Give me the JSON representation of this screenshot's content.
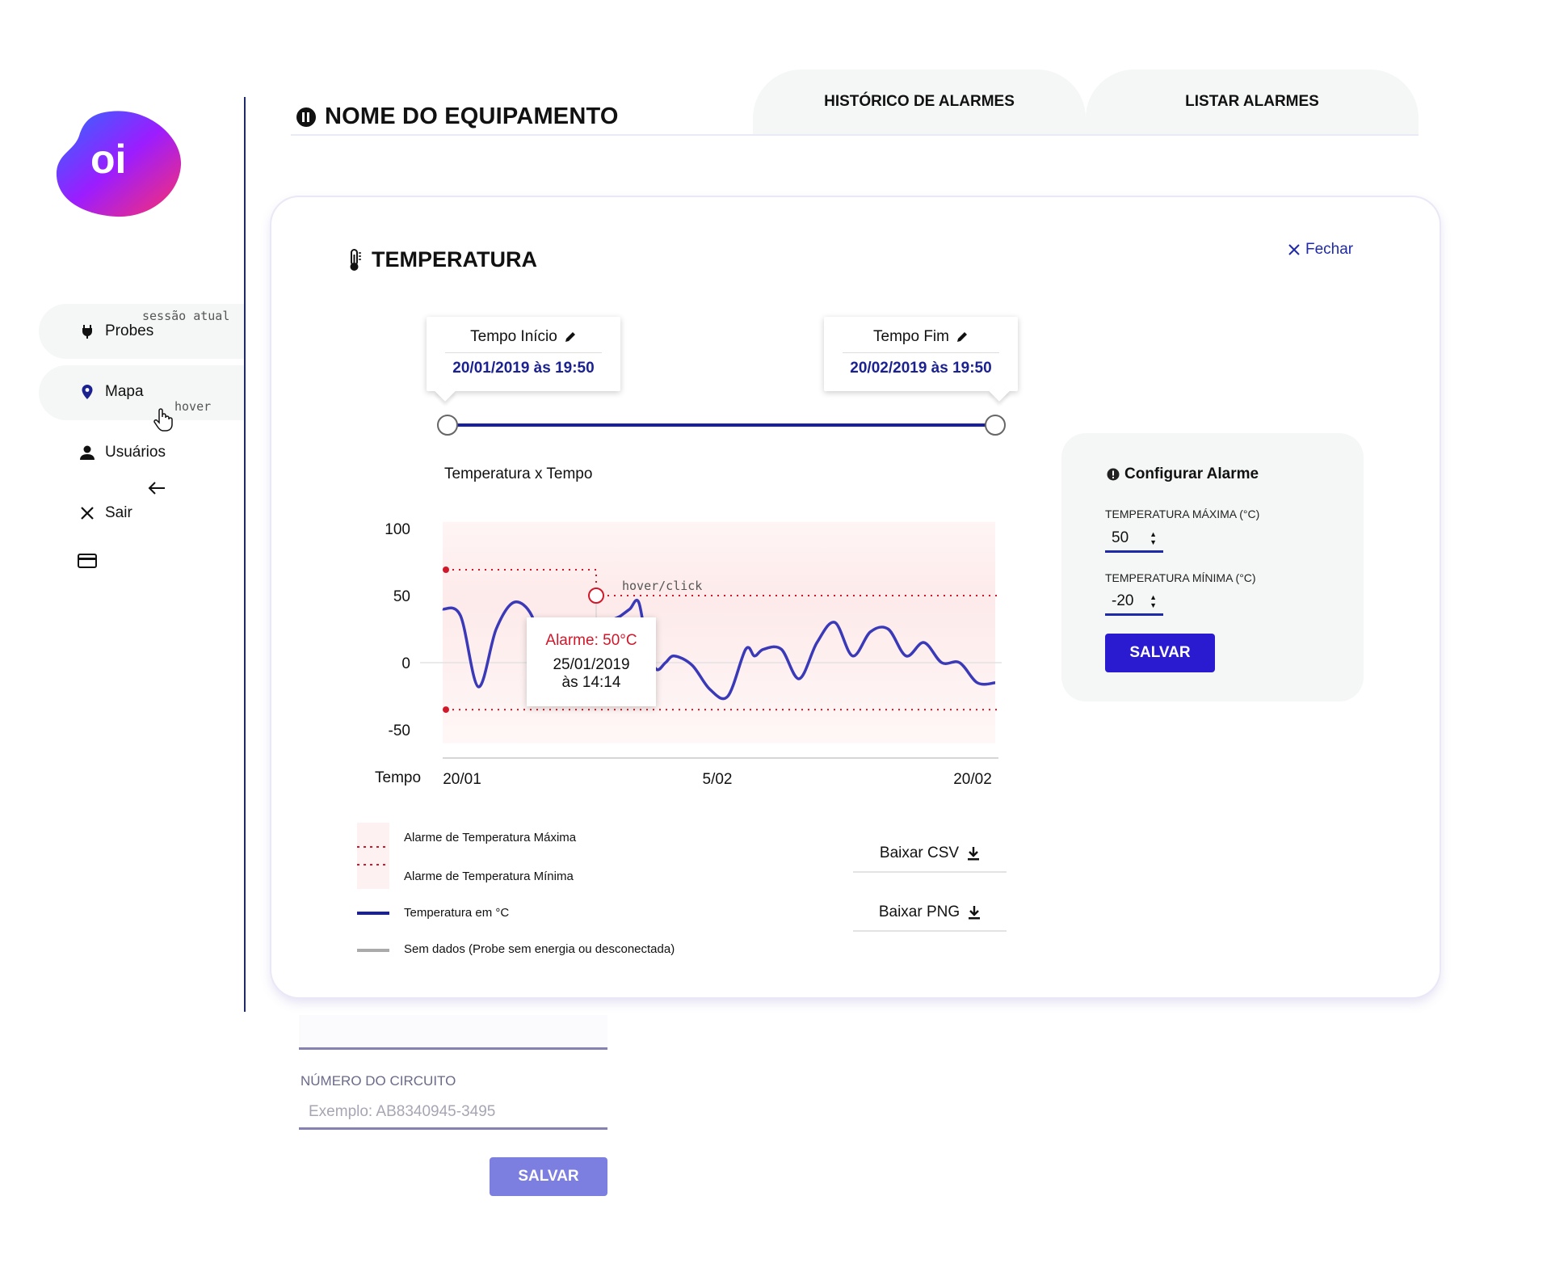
{
  "logo": {
    "text": "oi"
  },
  "sidebar": {
    "items": [
      {
        "label": "Probes",
        "icon": "plug-icon"
      },
      {
        "label": "Mapa",
        "icon": "map-pin-icon"
      },
      {
        "label": "Usuários",
        "icon": "user-icon"
      },
      {
        "label": "Sair",
        "icon": "close-icon"
      }
    ],
    "notes": {
      "session": "sessão atual",
      "hover": "hover"
    }
  },
  "header": {
    "title": "NOME DO EQUIPAMENTO",
    "tabs": [
      {
        "label": "HISTÓRICO DE ALARMES"
      },
      {
        "label": "LISTAR ALARMES"
      }
    ]
  },
  "modal": {
    "title": "TEMPERATURA",
    "close_label": "Fechar",
    "time_start": {
      "label": "Tempo Início",
      "value": "20/01/2019 às 19:50"
    },
    "time_end": {
      "label": "Tempo Fim",
      "value": "20/02/2019 às 19:50"
    },
    "hover_note": "hover/click",
    "tooltip": {
      "alarm": "Alarme: 50°C",
      "date": "25/01/2019",
      "time": "às 14:14"
    },
    "legend": [
      {
        "label": "Alarme de Temperatura Máxima"
      },
      {
        "label": "Alarme de Temperatura Mínima"
      },
      {
        "label": "Temperatura em °C"
      },
      {
        "label": "Sem dados (Probe sem energia ou desconectada)"
      }
    ],
    "downloads": {
      "csv": "Baixar CSV",
      "png": "Baixar PNG"
    },
    "colors": {
      "line": "#3a3ab8",
      "alarm": "#d0182a",
      "accent": "#1e2aa8"
    }
  },
  "chart_data": {
    "type": "line",
    "title": "Temperatura x Tempo",
    "xlabel": "Tempo",
    "ylabel": "",
    "ylim": [
      -70,
      115
    ],
    "yticks": [
      100,
      50,
      0,
      -50
    ],
    "xticks": [
      "20/01",
      "5/02",
      "20/02"
    ],
    "x_day_range": [
      0,
      31
    ],
    "max_alarm": 50,
    "min_alarm": -35,
    "series": [
      {
        "values": [
          [
            0,
            40
          ],
          [
            1,
            35
          ],
          [
            2,
            -18
          ],
          [
            3,
            25
          ],
          [
            4,
            45
          ],
          [
            5,
            35
          ],
          [
            5.5,
            5
          ],
          [
            6.5,
            -8
          ],
          [
            7.5,
            5
          ],
          [
            8.5,
            -10
          ],
          [
            9,
            25
          ],
          [
            10,
            35
          ],
          [
            10.5,
            40
          ],
          [
            11,
            45
          ],
          [
            11.5,
            10
          ],
          [
            12,
            -5
          ],
          [
            12.5,
            0
          ],
          [
            13,
            5
          ],
          [
            14,
            -2
          ],
          [
            15,
            -20
          ],
          [
            16,
            -25
          ],
          [
            17,
            10
          ],
          [
            17.5,
            5
          ],
          [
            18,
            10
          ],
          [
            19,
            10
          ],
          [
            20,
            -12
          ],
          [
            21,
            15
          ],
          [
            22,
            30
          ],
          [
            23,
            5
          ],
          [
            24,
            23
          ],
          [
            25,
            25
          ],
          [
            26,
            5
          ],
          [
            27,
            15
          ],
          [
            28,
            0
          ],
          [
            29,
            0
          ],
          [
            30,
            -15
          ],
          [
            31,
            -15
          ]
        ]
      }
    ]
  },
  "cfg": {
    "title": "Configurar Alarme",
    "max_label": "TEMPERATURA MÁXIMA (°C)",
    "max_value": "50",
    "min_label": "TEMPERATURA MÍNIMA (°C)",
    "min_value": "-20",
    "save_label": "SALVAR"
  },
  "form": {
    "circuit_label": "NÚMERO DO CIRCUITO",
    "circuit_placeholder": "Exemplo: AB8340945-3495",
    "save_label": "SALVAR"
  }
}
